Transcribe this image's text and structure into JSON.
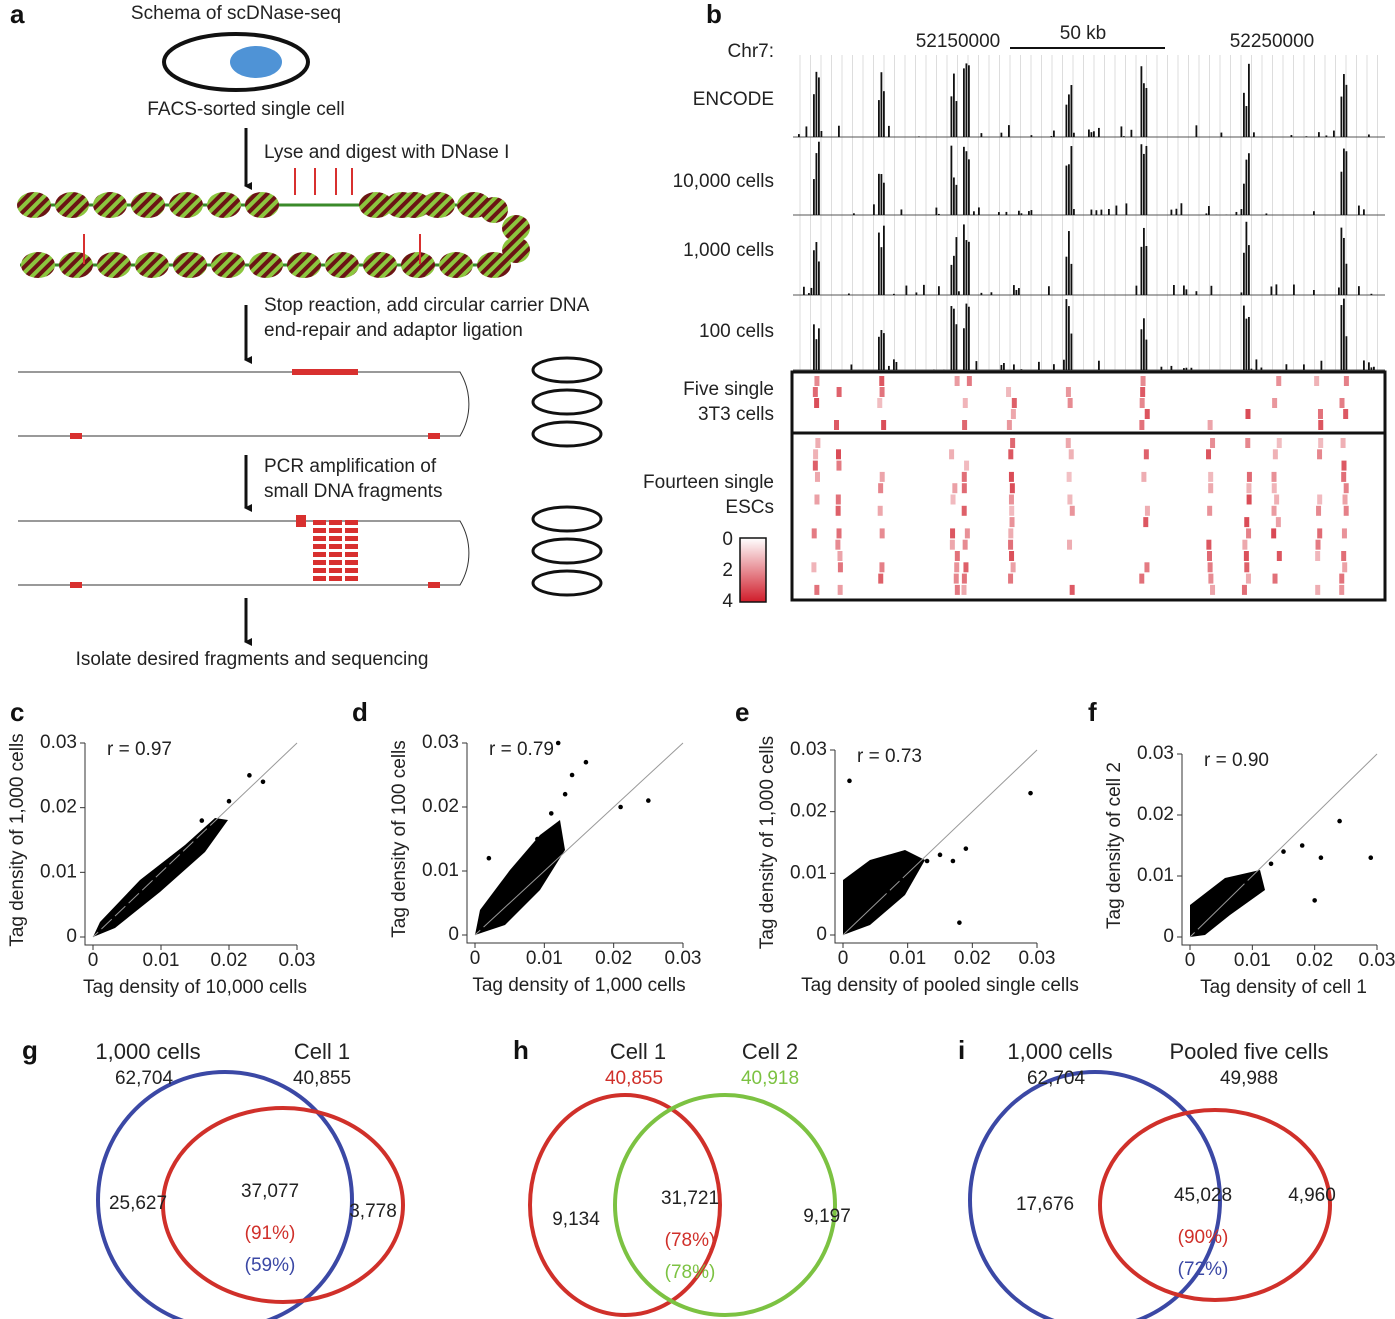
{
  "panel_labels": {
    "a": "a",
    "b": "b"
  },
  "schema": {
    "title": "Schema of scDNase-seq",
    "cell": "FACS-sorted single cell",
    "steps": [
      [
        "Lyse and digest with DNase I"
      ],
      [
        "Stop reaction, add circular carrier DNA",
        "end-repair and adaptor ligation"
      ],
      [
        "PCR amplification of",
        "small DNA fragments"
      ]
    ],
    "final": "Isolate desired fragments and sequencing"
  },
  "browser": {
    "chrom": "Chr7:",
    "pos1": "52150000",
    "scale": "50 kb",
    "pos2": "52250000",
    "tracks": [
      "ENCODE",
      "10,000 cells",
      "1,000 cells",
      "100 cells"
    ],
    "group1": [
      "Five single",
      "3T3 cells"
    ],
    "group2": [
      "Fourteen single",
      "ESCs"
    ],
    "legend_ticks": [
      0,
      2,
      4
    ]
  },
  "chart_data": [
    {
      "type": "scatter",
      "panel": "c",
      "xlabel": "Tag density of 10,000 cells",
      "ylabel": "Tag density of 1,000 cells",
      "annotation": "r = 0.97",
      "xlim": [
        0,
        0.03
      ],
      "ylim": [
        0,
        0.03
      ],
      "xticks": [
        0,
        0.01,
        0.02,
        0.03
      ],
      "yticks": [
        0,
        0.01,
        0.02,
        0.03
      ],
      "x": [
        0.001,
        0.003,
        0.005,
        0.007,
        0.009,
        0.011,
        0.013,
        0.015,
        0.017,
        0.02,
        0.023,
        0.025,
        0.016
      ],
      "y": [
        0.001,
        0.003,
        0.005,
        0.007,
        0.009,
        0.011,
        0.013,
        0.015,
        0.017,
        0.021,
        0.025,
        0.024,
        0.018
      ]
    },
    {
      "type": "scatter",
      "panel": "d",
      "xlabel": "Tag density of 1,000 cells",
      "ylabel": "Tag density of 100 cells",
      "annotation": "r = 0.79",
      "xlim": [
        0,
        0.03
      ],
      "ylim": [
        0,
        0.03
      ],
      "xticks": [
        0,
        0.01,
        0.02,
        0.03
      ],
      "yticks": [
        0,
        0.01,
        0.02,
        0.03
      ],
      "x": [
        0.001,
        0.003,
        0.005,
        0.007,
        0.009,
        0.011,
        0.013,
        0.016,
        0.021,
        0.025,
        0.012,
        0.002,
        0.014
      ],
      "y": [
        0.001,
        0.004,
        0.008,
        0.011,
        0.015,
        0.019,
        0.022,
        0.027,
        0.02,
        0.021,
        0.03,
        0.012,
        0.025
      ]
    },
    {
      "type": "scatter",
      "panel": "e",
      "xlabel": "Tag density of pooled single cells",
      "ylabel": "Tag density of 1,000 cells",
      "annotation": "r = 0.73",
      "xlim": [
        0,
        0.03
      ],
      "ylim": [
        0,
        0.03
      ],
      "xticks": [
        0,
        0.01,
        0.02,
        0.03
      ],
      "yticks": [
        0,
        0.01,
        0.02,
        0.03
      ],
      "x": [
        0.001,
        0.003,
        0.005,
        0.007,
        0.009,
        0.011,
        0.013,
        0.015,
        0.017,
        0.019,
        0.029,
        0.001,
        0.018
      ],
      "y": [
        0.002,
        0.004,
        0.006,
        0.007,
        0.009,
        0.01,
        0.012,
        0.013,
        0.012,
        0.014,
        0.023,
        0.025,
        0.002
      ]
    },
    {
      "type": "scatter",
      "panel": "f",
      "xlabel": "Tag density of cell 1",
      "ylabel": "Tag density of  cell 2",
      "annotation": "r = 0.90",
      "xlim": [
        0,
        0.03
      ],
      "ylim": [
        0,
        0.03
      ],
      "xticks": [
        0,
        0.01,
        0.02,
        0.03
      ],
      "yticks": [
        0,
        0.01,
        0.02,
        0.03
      ],
      "x": [
        0.001,
        0.003,
        0.005,
        0.007,
        0.009,
        0.011,
        0.013,
        0.015,
        0.018,
        0.021,
        0.024,
        0.029,
        0.02
      ],
      "y": [
        0.001,
        0.004,
        0.006,
        0.006,
        0.009,
        0.01,
        0.012,
        0.014,
        0.015,
        0.013,
        0.019,
        0.013,
        0.006
      ]
    }
  ],
  "venns": [
    {
      "panel": "g",
      "left": "1,000 cells",
      "left_count": "62,704",
      "right": "Cell 1",
      "right_count": "40,855",
      "only_left": "25,627",
      "both": "37,077",
      "only_right": "3,778",
      "pct_right": "(91%)",
      "pct_left": "(59%)"
    },
    {
      "panel": "h",
      "left": "Cell 1",
      "left_count": "40,855",
      "right": "Cell 2",
      "right_count": "40,918",
      "only_left": "9,134",
      "both": "31,721",
      "only_right": "9,197",
      "pct_right": "(78%)",
      "pct_left": "(78%)"
    },
    {
      "panel": "i",
      "left": "1,000 cells",
      "left_count": "62,704",
      "right": "Pooled five cells",
      "right_count": "49,988",
      "only_left": "17,676",
      "both": "45,028",
      "only_right": "4,960",
      "pct_right": "(90%)",
      "pct_left": "(72%)"
    }
  ]
}
